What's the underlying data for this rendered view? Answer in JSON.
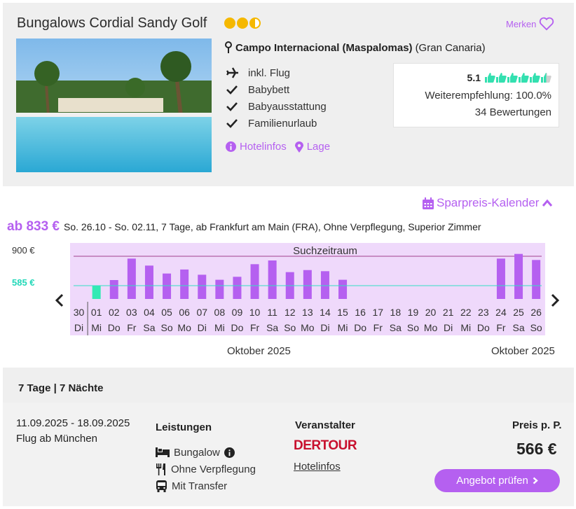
{
  "hotel": {
    "name": "Bungalows Cordial Sandy Golf",
    "stars": 2.5,
    "merken_label": "Merken",
    "location_bold": "Campo Internacional (Maspalomas)",
    "location_region": "(Gran Canaria)",
    "features": [
      "inkl. Flug",
      "Babybett",
      "Babyausstattung",
      "Familienurlaub"
    ],
    "links": [
      "Hotelinfos",
      "Lage"
    ]
  },
  "rating": {
    "score": "5.1",
    "thumbs": 5.5,
    "recommendation": "Weiterempfehlung: 100.0%",
    "count": "34 Bewertungen"
  },
  "calendar": {
    "toggle_label": "Sparpreis-Kalender",
    "ab_price": "ab 833 €",
    "description": "So. 26.10 - So. 02.11, 7 Tage, ab Frankfurt am Main (FRA), Ohne Verpflegung, Superior Zimmer",
    "y_max_label": "900 €",
    "y_min_label": "585 €",
    "search_label": "Suchzeitraum",
    "months": [
      "Oktober 2025",
      "Oktober 2025"
    ]
  },
  "chart_data": {
    "type": "bar",
    "days": [
      "30",
      "01",
      "02",
      "03",
      "04",
      "05",
      "06",
      "07",
      "08",
      "09",
      "10",
      "11",
      "12",
      "13",
      "14",
      "15",
      "16",
      "17",
      "18",
      "19",
      "20",
      "21",
      "22",
      "23",
      "24",
      "25",
      "26"
    ],
    "weekdays": [
      "Di",
      "Mi",
      "Do",
      "Fr",
      "Sa",
      "So",
      "Mo",
      "Di",
      "Mi",
      "Do",
      "Fr",
      "Sa",
      "So",
      "Mo",
      "Di",
      "Mi",
      "Do",
      "Fr",
      "Sa",
      "So",
      "Mo",
      "Di",
      "Mi",
      "Do",
      "Fr",
      "Sa",
      "So"
    ],
    "values": [
      null,
      585,
      645,
      875,
      800,
      715,
      758,
      702,
      648,
      680,
      815,
      855,
      730,
      752,
      740,
      648,
      null,
      null,
      null,
      null,
      null,
      null,
      null,
      null,
      875,
      925,
      860
    ],
    "reference_lines": [
      900,
      585
    ],
    "highlight_index": 1,
    "colors": {
      "bar": "#b560f0",
      "cheapest": "#33eab4",
      "background": "#efd9fb",
      "line900": "#a0408c",
      "line585": "#33e0c4"
    }
  },
  "offer": {
    "header": "7 Tage | 7 Nächte",
    "dates": "11.09.2025 - 18.09.2025",
    "flight": "Flug ab München",
    "leistungen_title": "Leistungen",
    "leistungen": [
      "Bungalow",
      "Ohne Verpflegung",
      "Mit Transfer"
    ],
    "veranstalter_title": "Veranstalter",
    "veranstalter": "DERTOUR",
    "hotelinfos": "Hotelinfos",
    "preis_title": "Preis p. P.",
    "preis": "566 €",
    "button": "Angebot prüfen"
  }
}
